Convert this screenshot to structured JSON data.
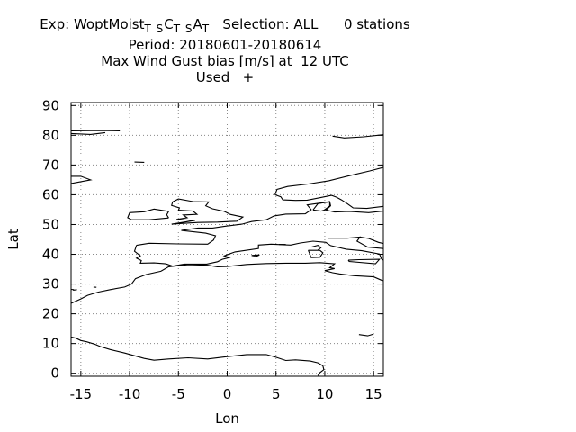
{
  "title": {
    "exp_prefix": "Exp: WoptMoist",
    "exp_sub1": "T S",
    "exp_c": "C",
    "exp_sub2": "T S",
    "exp_a": "A",
    "exp_sub3": "T",
    "selection": "   Selection: ALL      0 stations",
    "period": "Period: 20180601-20180614",
    "metric": "Max Wind Gust bias [m/s] at  12 UTC",
    "used": "Used   +"
  },
  "chart_data": {
    "type": "scatter",
    "xlabel": "Lon",
    "ylabel": "Lat",
    "xlim": [
      -16,
      16
    ],
    "ylim": [
      -1,
      91
    ],
    "xticks": [
      -15,
      -10,
      -5,
      0,
      5,
      10,
      15
    ],
    "yticks": [
      0,
      10,
      20,
      30,
      40,
      50,
      60,
      70,
      80,
      90
    ],
    "grid": true,
    "grid_style": "dotted",
    "series": [],
    "coastlines": [
      [
        [
          -16,
          23.5
        ],
        [
          -15,
          25
        ],
        [
          -14.3,
          26.2
        ],
        [
          -13.2,
          27.3
        ],
        [
          -12,
          28.1
        ],
        [
          -10.5,
          29
        ],
        [
          -9.8,
          30
        ],
        [
          -9.4,
          31.8
        ],
        [
          -8.3,
          33.2
        ],
        [
          -6.8,
          34.3
        ],
        [
          -6,
          35.8
        ],
        [
          -5.4,
          36
        ],
        [
          -4,
          36.5
        ],
        [
          -2,
          36.3
        ],
        [
          -1,
          35.8
        ],
        [
          0,
          35.9
        ],
        [
          2,
          36.6
        ],
        [
          4,
          36.9
        ],
        [
          6,
          37
        ],
        [
          8,
          37
        ],
        [
          9.5,
          37.2
        ],
        [
          10.2,
          37
        ],
        [
          11,
          36.8
        ],
        [
          10.5,
          35.5
        ],
        [
          11,
          35.2
        ],
        [
          10,
          34.5
        ],
        [
          10.8,
          33.8
        ],
        [
          11.5,
          33.4
        ],
        [
          13,
          32.8
        ],
        [
          15,
          32.4
        ],
        [
          15.8,
          31.3
        ],
        [
          16,
          31.1
        ]
      ],
      [
        [
          -16,
          12.2
        ],
        [
          -15.5,
          11.8
        ],
        [
          -15,
          11
        ],
        [
          -14.4,
          10.6
        ],
        [
          -13.6,
          9.8
        ],
        [
          -13,
          9
        ],
        [
          -12,
          8
        ],
        [
          -10.5,
          6.8
        ],
        [
          -8.5,
          5
        ],
        [
          -7.5,
          4.4
        ],
        [
          -6,
          4.8
        ],
        [
          -4,
          5.2
        ],
        [
          -2,
          4.8
        ],
        [
          0,
          5.6
        ],
        [
          2,
          6.3
        ],
        [
          4,
          6.3
        ],
        [
          5,
          5.4
        ],
        [
          6,
          4.3
        ],
        [
          7,
          4.5
        ],
        [
          8.5,
          4.1
        ],
        [
          9.3,
          3.5
        ],
        [
          9.8,
          2.5
        ],
        [
          9.9,
          1.2
        ],
        [
          9.5,
          0.2
        ],
        [
          9.3,
          -0.8
        ]
      ],
      [
        [
          -9.3,
          43
        ],
        [
          -8,
          43.7
        ],
        [
          -5,
          43.5
        ],
        [
          -2,
          43.4
        ],
        [
          -1.4,
          44.8
        ],
        [
          -1.2,
          46.2
        ],
        [
          -2.2,
          47.1
        ],
        [
          -4.7,
          48
        ],
        [
          -3,
          48.8
        ],
        [
          -1.5,
          48.8
        ],
        [
          0,
          49.5
        ],
        [
          1.5,
          50.1
        ],
        [
          2.5,
          51
        ],
        [
          4,
          51.6
        ],
        [
          4.8,
          52.9
        ],
        [
          6,
          53.5
        ],
        [
          8,
          53.6
        ],
        [
          8.6,
          55
        ],
        [
          8.2,
          56.6
        ],
        [
          9.5,
          57.2
        ],
        [
          10.5,
          57.6
        ],
        [
          10.5,
          56.2
        ],
        [
          10,
          55
        ],
        [
          11,
          54.2
        ],
        [
          12.5,
          54.4
        ],
        [
          14.5,
          54
        ],
        [
          16,
          54.5
        ]
      ],
      [
        [
          -9.3,
          43
        ],
        [
          -9.5,
          41
        ],
        [
          -8.9,
          39.5
        ],
        [
          -9.3,
          38.7
        ],
        [
          -8.8,
          37.9
        ],
        [
          -8.9,
          37
        ],
        [
          -7.5,
          37.1
        ],
        [
          -6.3,
          36.8
        ],
        [
          -5.6,
          36
        ],
        [
          -4.4,
          36.7
        ],
        [
          -2.1,
          36.7
        ],
        [
          -1,
          37.5
        ],
        [
          -0.5,
          38.3
        ],
        [
          0.2,
          38.9
        ],
        [
          -0.3,
          39.5
        ],
        [
          0.8,
          40.8
        ],
        [
          3.2,
          41.9
        ],
        [
          3.2,
          43.1
        ],
        [
          4.5,
          43.4
        ],
        [
          6.5,
          43.1
        ],
        [
          7.5,
          43.8
        ],
        [
          8.8,
          44.4
        ],
        [
          10.1,
          44
        ],
        [
          10.6,
          42.9
        ],
        [
          12.2,
          41.7
        ],
        [
          13.8,
          41.2
        ],
        [
          15.6,
          40.1
        ],
        [
          15.8,
          38.5
        ],
        [
          16,
          38
        ]
      ],
      [
        [
          -5.7,
          50.1
        ],
        [
          -4.5,
          50.4
        ],
        [
          -3,
          50.7
        ],
        [
          -1,
          50.8
        ],
        [
          1,
          51.1
        ],
        [
          1.6,
          52.5
        ],
        [
          0.3,
          53.4
        ],
        [
          -0.3,
          54.4
        ],
        [
          -1.5,
          55.3
        ],
        [
          -2.2,
          56.3
        ],
        [
          -1.9,
          57.6
        ],
        [
          -3.5,
          57.7
        ],
        [
          -5,
          58.6
        ],
        [
          -5.6,
          57.6
        ],
        [
          -5.7,
          56.4
        ],
        [
          -4.9,
          55.6
        ],
        [
          -5,
          54.8
        ],
        [
          -3.5,
          54.5
        ],
        [
          -3.1,
          53.4
        ],
        [
          -4.5,
          53.2
        ],
        [
          -4.1,
          52.3
        ],
        [
          -5.2,
          51.7
        ],
        [
          -3.3,
          51.4
        ],
        [
          -5.7,
          50.1
        ]
      ],
      [
        [
          -6,
          52.2
        ],
        [
          -6.2,
          53.3
        ],
        [
          -6,
          54.4
        ],
        [
          -7.5,
          55.2
        ],
        [
          -8.5,
          54.3
        ],
        [
          -10,
          54
        ],
        [
          -10.2,
          52.3
        ],
        [
          -9.8,
          51.6
        ],
        [
          -8,
          51.6
        ],
        [
          -6,
          52.2
        ]
      ],
      [
        [
          -22,
          63.9
        ],
        [
          -19,
          63.4
        ],
        [
          -16,
          63.8
        ],
        [
          -14,
          65
        ],
        [
          -15,
          66.2
        ],
        [
          -17,
          66.2
        ],
        [
          -19,
          66.1
        ]
      ],
      [
        [
          -16,
          81.5
        ],
        [
          -13,
          81.6
        ],
        [
          -11,
          81.5
        ]
      ],
      [
        [
          -16,
          80.6
        ],
        [
          -14,
          80.3
        ],
        [
          -12.5,
          80.9
        ]
      ],
      [
        [
          10.8,
          79.7
        ],
        [
          12,
          79.1
        ],
        [
          14,
          79.5
        ],
        [
          16,
          80.2
        ]
      ],
      [
        [
          4.9,
          60
        ],
        [
          5.5,
          59.3
        ],
        [
          5.7,
          58.3
        ],
        [
          7,
          58.1
        ],
        [
          8.2,
          58.2
        ],
        [
          9.5,
          59
        ],
        [
          10.7,
          59.8
        ],
        [
          11.2,
          59.2
        ],
        [
          11.7,
          58.3
        ],
        [
          12.3,
          57
        ],
        [
          12.9,
          55.6
        ],
        [
          14.3,
          55.4
        ],
        [
          16,
          56.1
        ]
      ],
      [
        [
          4.9,
          60
        ],
        [
          5.1,
          61.8
        ],
        [
          6.2,
          62.8
        ],
        [
          8.3,
          63.6
        ],
        [
          10.4,
          64.7
        ],
        [
          12.5,
          66.4
        ],
        [
          14.6,
          68
        ],
        [
          16,
          69.2
        ]
      ],
      [
        [
          8.8,
          54.9
        ],
        [
          9.3,
          57
        ],
        [
          10.5,
          57.7
        ],
        [
          10.6,
          56.3
        ],
        [
          10.2,
          55.1
        ],
        [
          9.6,
          54.5
        ],
        [
          8.8,
          54.9
        ]
      ],
      [
        [
          8.3,
          41.3
        ],
        [
          9.5,
          41.3
        ],
        [
          9.8,
          40.5
        ],
        [
          9.5,
          39
        ],
        [
          8.6,
          38.9
        ],
        [
          8.4,
          40.6
        ],
        [
          8.3,
          41.3
        ]
      ],
      [
        [
          8.6,
          42.4
        ],
        [
          9.3,
          43
        ],
        [
          9.6,
          42.2
        ],
        [
          9.3,
          41.4
        ]
      ],
      [
        [
          12.4,
          38
        ],
        [
          13.5,
          38.2
        ],
        [
          15.6,
          38.3
        ],
        [
          15.2,
          36.8
        ],
        [
          12.5,
          37.6
        ],
        [
          12.4,
          38
        ]
      ],
      [
        [
          13.6,
          45.8
        ],
        [
          14.5,
          45.3
        ],
        [
          15.5,
          44
        ],
        [
          16,
          43.6
        ]
      ],
      [
        [
          10.3,
          45.4
        ],
        [
          12.3,
          45.4
        ],
        [
          13,
          45.6
        ],
        [
          13.6,
          45.8
        ],
        [
          13.3,
          44.4
        ],
        [
          14.4,
          42.4
        ],
        [
          16,
          41.9
        ]
      ],
      [
        [
          -17,
          28.5
        ],
        [
          -16.3,
          28.3
        ],
        [
          -15.7,
          28.1
        ]
      ],
      [
        [
          -15.8,
          27.9
        ],
        [
          -15.4,
          28.1
        ]
      ],
      [
        [
          -13.7,
          29
        ],
        [
          -13.4,
          28.9
        ]
      ],
      [
        [
          -9.5,
          71
        ],
        [
          -8.5,
          70.9
        ]
      ],
      [
        [
          2.5,
          39.6
        ],
        [
          3.3,
          39.8
        ],
        [
          3,
          39.3
        ],
        [
          2.5,
          39.6
        ]
      ],
      [
        [
          13.5,
          13
        ],
        [
          14.4,
          12.6
        ],
        [
          15,
          13.2
        ]
      ],
      [
        [
          6,
          43.3
        ],
        [
          5.3,
          43.3
        ]
      ]
    ]
  }
}
